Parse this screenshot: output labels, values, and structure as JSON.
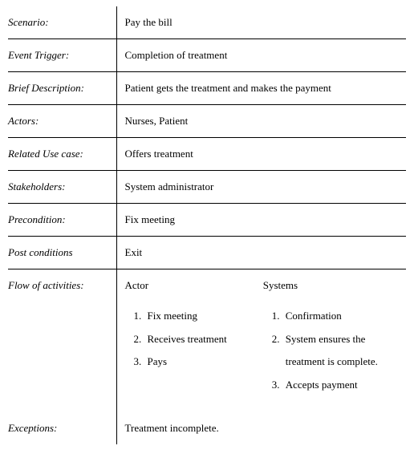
{
  "rows": {
    "scenario": {
      "label": "Scenario:",
      "value": "Pay the bill"
    },
    "eventTrigger": {
      "label": "Event Trigger:",
      "value": "Completion of treatment"
    },
    "briefDescription": {
      "label": "Brief Description:",
      "value": "Patient gets the treatment and makes the payment"
    },
    "actors": {
      "label": "Actors:",
      "value": "Nurses, Patient"
    },
    "relatedUseCase": {
      "label": "Related Use case:",
      "value": "Offers treatment"
    },
    "stakeholders": {
      "label": "Stakeholders:",
      "value": "System administrator"
    },
    "precondition": {
      "label": "Precondition:",
      "value": "Fix meeting"
    },
    "postConditions": {
      "label": "Post conditions",
      "value": "Exit"
    },
    "flowOfActivities": {
      "label": "Flow of activities:",
      "actorHeader": "Actor",
      "systemsHeader": "Systems",
      "actorItems": [
        "Fix meeting",
        "Receives treatment",
        "Pays"
      ],
      "systemsItems": [
        "Confirmation",
        "System ensures the treatment is complete.",
        "Accepts payment"
      ]
    },
    "exceptions": {
      "label": "Exceptions:",
      "value": "Treatment incomplete."
    }
  },
  "styling": {
    "type": "table",
    "fontFamily": "Times New Roman",
    "fontSize": 13,
    "fontStyle_labels": "italic",
    "textColor": "#000000",
    "backgroundColor": "#ffffff",
    "borderColor": "#000000",
    "borderWidth": 1,
    "labelColumnWidth": 135,
    "valueColumnWidth": 361,
    "rowPaddingVertical": 12,
    "listStyle": "decimal",
    "listLineHeight": 2.2
  }
}
